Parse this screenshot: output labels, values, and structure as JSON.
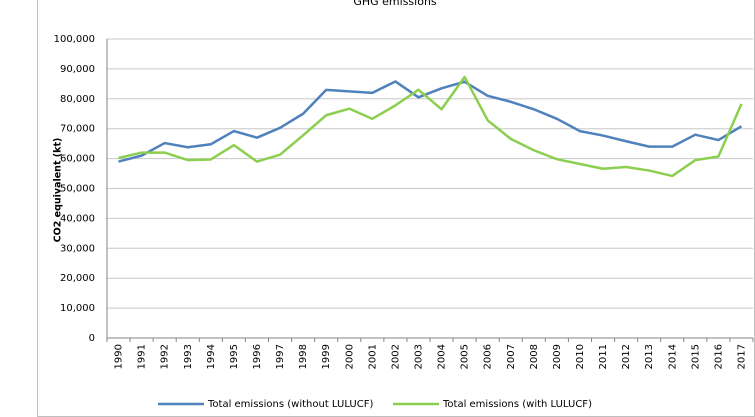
{
  "chart_data": {
    "type": "line",
    "title": "GHG emissions",
    "y_label": "CO2 equivalent (kt)",
    "categories": [
      "1990",
      "1991",
      "1992",
      "1993",
      "1994",
      "1995",
      "1996",
      "1997",
      "1998",
      "1999",
      "2000",
      "2001",
      "2002",
      "2003",
      "2004",
      "2005",
      "2006",
      "2007",
      "2008",
      "2009",
      "2010",
      "2011",
      "2012",
      "2013",
      "2014",
      "2015",
      "2016",
      "2017"
    ],
    "series": [
      {
        "name": "Total emissions (without LULUCF)",
        "color": "#4f81bd",
        "values": [
          59000,
          61000,
          65200,
          63800,
          64800,
          69200,
          67000,
          70300,
          75000,
          83000,
          82500,
          82000,
          85800,
          80500,
          83500,
          85700,
          81000,
          79000,
          76500,
          73300,
          69200,
          67700,
          65800,
          64000,
          64000,
          68000,
          66200,
          70800
        ]
      },
      {
        "name": "Total emissions (with LULUCF)",
        "color": "#8ccf50",
        "values": [
          60200,
          62000,
          62000,
          59500,
          59700,
          64500,
          59000,
          61300,
          67800,
          74500,
          76700,
          73300,
          77800,
          83000,
          76500,
          87300,
          72800,
          66600,
          62800,
          59800,
          58200,
          56600,
          57200,
          56000,
          54200,
          59500,
          60700,
          78300
        ]
      }
    ],
    "ylim": [
      0,
      100000
    ],
    "yticks": [
      0,
      {
        "value": 10000,
        "label": "10,000"
      },
      {
        "value": 20000,
        "label": "20,000"
      },
      {
        "value": 30000,
        "label": "30,000"
      },
      {
        "value": 40000,
        "label": "40,000"
      },
      {
        "value": 50000,
        "label": "50,000"
      },
      {
        "value": 60000,
        "label": "60,000"
      },
      {
        "value": 70000,
        "label": "70,000"
      },
      {
        "value": 80000,
        "label": "80,000"
      },
      {
        "value": 90000,
        "label": "90,000"
      },
      {
        "value": 100000,
        "label": "100,000"
      }
    ],
    "grid": true,
    "legend": "bottom"
  }
}
